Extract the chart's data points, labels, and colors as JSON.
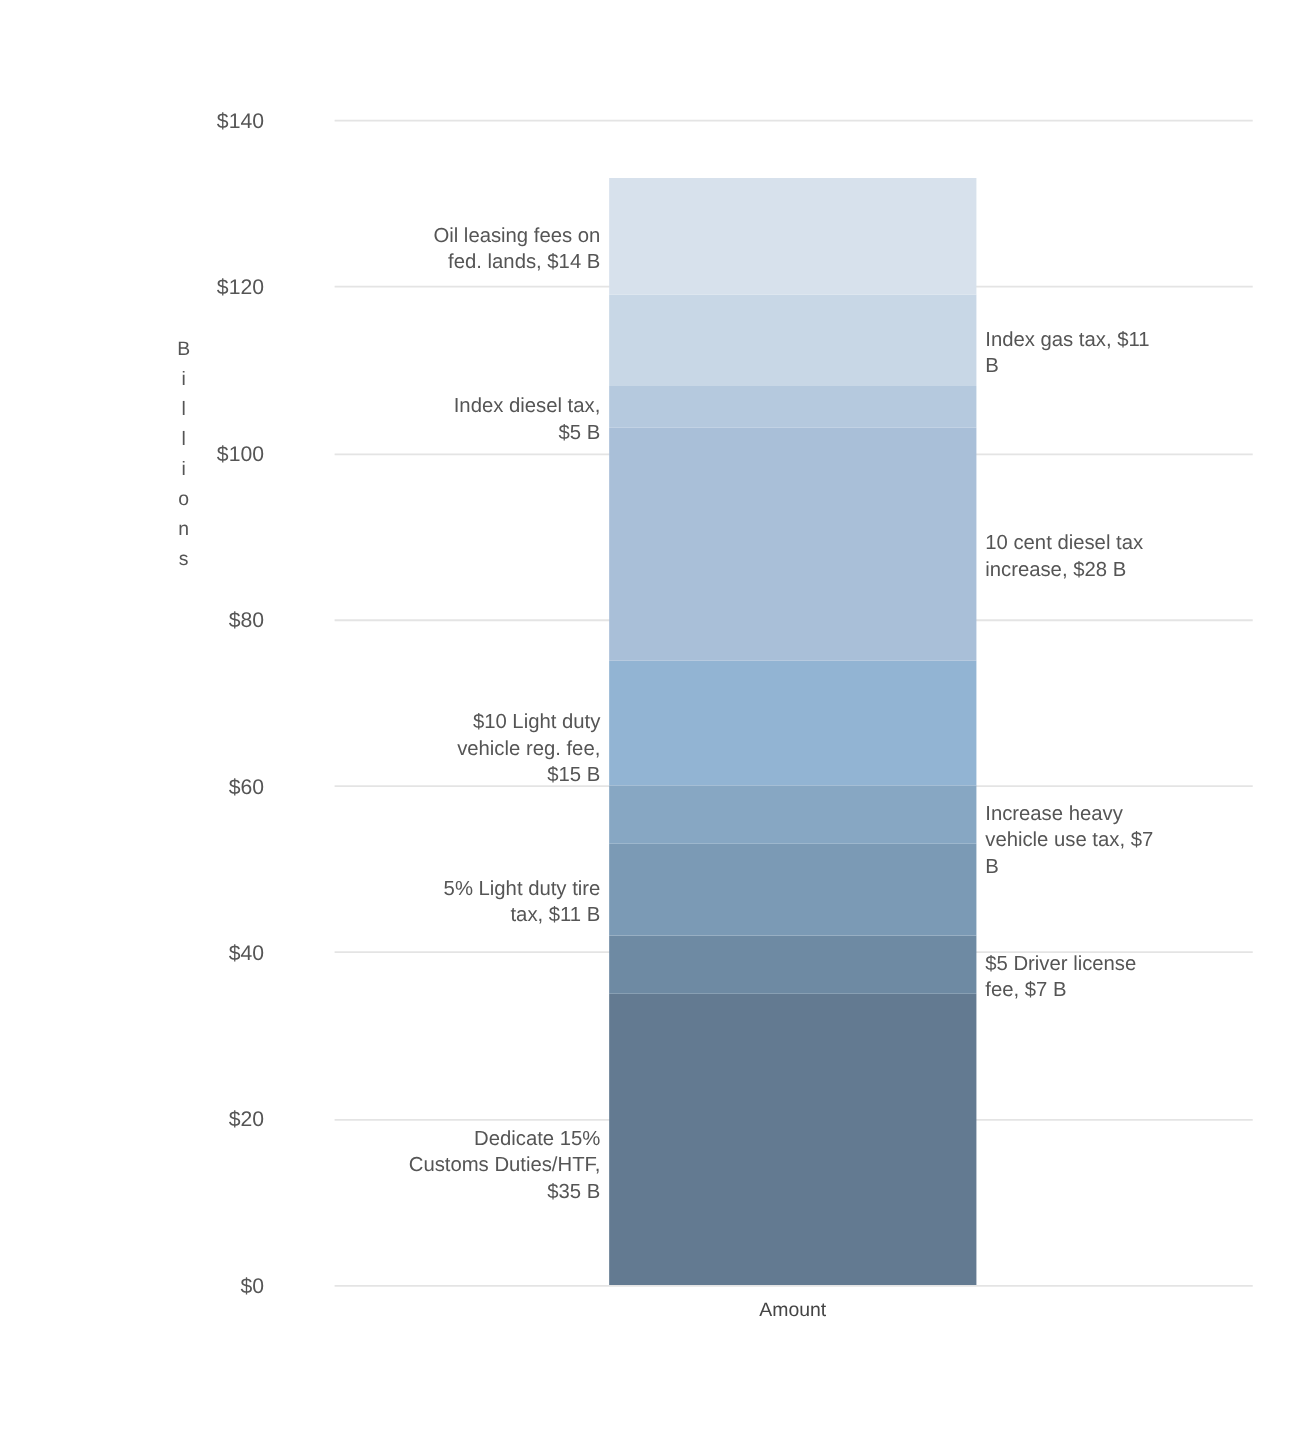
{
  "chart_data": {
    "type": "bar",
    "stacked": true,
    "ylabel": "Billions",
    "categories": [
      "Amount"
    ],
    "series": [
      {
        "name": "Dedicate 15% Customs Duties/HTF, $35 B",
        "color": "#637a91",
        "values": [
          35
        ]
      },
      {
        "name": "$5 Driver license fee, $7 B",
        "color": "#6e8aa3",
        "values": [
          7
        ]
      },
      {
        "name": "5% Light duty tire tax, $11 B",
        "color": "#7b9ab5",
        "values": [
          11
        ]
      },
      {
        "name": "Increase heavy vehicle use tax, $7 B",
        "color": "#87a7c3",
        "values": [
          7
        ]
      },
      {
        "name": "$10 Light duty vehicle reg. fee, $15 B",
        "color": "#92b4d3",
        "values": [
          15
        ]
      },
      {
        "name": "10 cent diesel tax increase, $28 B",
        "color": "#a9bfd8",
        "values": [
          28
        ]
      },
      {
        "name": "Index diesel tax, $5 B",
        "color": "#b5c9de",
        "values": [
          5
        ]
      },
      {
        "name": "Index gas tax, $11 B",
        "color": "#c8d7e6",
        "values": [
          11
        ]
      },
      {
        "name": "Oil leasing fees on fed. lands, $14 B",
        "color": "#d7e1ec",
        "values": [
          14
        ]
      }
    ],
    "ylim": [
      0,
      140
    ],
    "yticks": [
      {
        "value": 0,
        "label": "$0"
      },
      {
        "value": 20,
        "label": "$20"
      },
      {
        "value": 40,
        "label": "$40"
      },
      {
        "value": 60,
        "label": "$60"
      },
      {
        "value": 80,
        "label": "$80"
      },
      {
        "value": 100,
        "label": "$100"
      },
      {
        "value": 120,
        "label": "$120"
      },
      {
        "value": 140,
        "label": "$140"
      }
    ],
    "grid": "y",
    "legend": false
  }
}
